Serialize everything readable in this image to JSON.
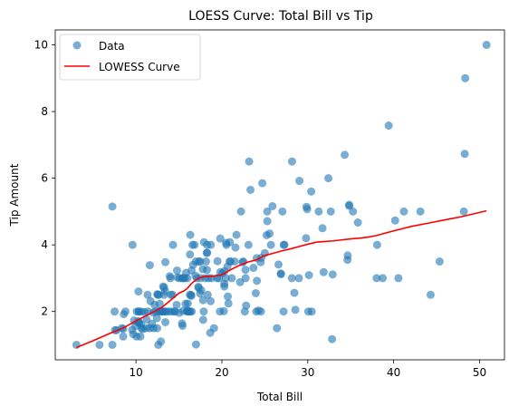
{
  "chart_data": {
    "type": "scatter",
    "title": "LOESS Curve: Total Bill vs Tip",
    "xlabel": "Total Bill",
    "ylabel": "Tip Amount",
    "xlim": [
      0.6,
      52.9
    ],
    "ylim": [
      0.55,
      10.45
    ],
    "xticks": [
      10,
      20,
      30,
      40,
      50
    ],
    "yticks": [
      2,
      4,
      6,
      8,
      10
    ],
    "grid": false,
    "legend_position": "top-left",
    "colors": {
      "scatter": "#1f77b4",
      "curve": "#ff0000"
    },
    "series": [
      {
        "name": "Data",
        "kind": "scatter",
        "points": [
          [
            3.07,
            1.0
          ],
          [
            5.75,
            1.0
          ],
          [
            7.25,
            1.0
          ],
          [
            7.25,
            5.15
          ],
          [
            7.51,
            2.0
          ],
          [
            7.56,
            1.44
          ],
          [
            7.74,
            1.44
          ],
          [
            8.35,
            1.5
          ],
          [
            8.51,
            1.25
          ],
          [
            8.52,
            1.48
          ],
          [
            8.58,
            1.92
          ],
          [
            8.77,
            2.0
          ],
          [
            9.55,
            1.45
          ],
          [
            9.6,
            4.0
          ],
          [
            9.68,
            1.32
          ],
          [
            9.78,
            1.73
          ],
          [
            9.94,
            1.56
          ],
          [
            10.07,
            1.25
          ],
          [
            10.09,
            2.0
          ],
          [
            10.27,
            1.71
          ],
          [
            10.29,
            2.6
          ],
          [
            10.33,
            1.67
          ],
          [
            10.33,
            2.0
          ],
          [
            10.34,
            1.66
          ],
          [
            10.34,
            2.0
          ],
          [
            10.51,
            1.25
          ],
          [
            10.59,
            1.61
          ],
          [
            10.63,
            2.0
          ],
          [
            10.65,
            1.5
          ],
          [
            10.77,
            1.47
          ],
          [
            11.02,
            1.98
          ],
          [
            11.17,
            1.5
          ],
          [
            11.24,
            1.76
          ],
          [
            11.35,
            2.5
          ],
          [
            11.38,
            2.0
          ],
          [
            11.59,
            1.5
          ],
          [
            11.61,
            3.39
          ],
          [
            11.69,
            2.31
          ],
          [
            11.87,
            1.63
          ],
          [
            12.02,
            1.97
          ],
          [
            12.03,
            1.5
          ],
          [
            12.16,
            2.2
          ],
          [
            12.26,
            2.0
          ],
          [
            12.43,
            1.8
          ],
          [
            12.46,
            1.5
          ],
          [
            12.48,
            2.52
          ],
          [
            12.54,
            2.5
          ],
          [
            12.6,
            1.0
          ],
          [
            12.66,
            2.5
          ],
          [
            12.69,
            2.0
          ],
          [
            12.74,
            2.01
          ],
          [
            12.76,
            2.23
          ],
          [
            12.9,
            1.1
          ],
          [
            13.0,
            2.0
          ],
          [
            13.03,
            2.0
          ],
          [
            13.13,
            2.0
          ],
          [
            13.16,
            2.75
          ],
          [
            13.27,
            2.5
          ],
          [
            13.28,
            2.72
          ],
          [
            13.37,
            2.0
          ],
          [
            13.39,
            2.61
          ],
          [
            13.42,
            3.48
          ],
          [
            13.42,
            1.68
          ],
          [
            13.51,
            2.0
          ],
          [
            13.81,
            2.0
          ],
          [
            13.94,
            3.06
          ],
          [
            14.0,
            3.0
          ],
          [
            14.07,
            2.5
          ],
          [
            14.15,
            2.0
          ],
          [
            14.26,
            2.5
          ],
          [
            14.31,
            4.0
          ],
          [
            14.48,
            2.0
          ],
          [
            14.52,
            2.0
          ],
          [
            14.73,
            2.2
          ],
          [
            14.78,
            3.23
          ],
          [
            14.83,
            3.02
          ],
          [
            15.04,
            1.96
          ],
          [
            15.06,
            3.0
          ],
          [
            15.36,
            1.64
          ],
          [
            15.38,
            3.0
          ],
          [
            15.42,
            1.57
          ],
          [
            15.48,
            2.02
          ],
          [
            15.53,
            3.0
          ],
          [
            15.69,
            3.0
          ],
          [
            15.77,
            2.23
          ],
          [
            15.81,
            3.16
          ],
          [
            15.95,
            2.0
          ],
          [
            15.98,
            2.03
          ],
          [
            15.98,
            3.0
          ],
          [
            16.0,
            2.0
          ],
          [
            16.04,
            2.24
          ],
          [
            16.21,
            2.0
          ],
          [
            16.27,
            2.5
          ],
          [
            16.29,
            3.71
          ],
          [
            16.31,
            2.0
          ],
          [
            16.32,
            4.3
          ],
          [
            16.4,
            2.5
          ],
          [
            16.45,
            2.47
          ],
          [
            16.47,
            3.23
          ],
          [
            16.49,
            2.0
          ],
          [
            16.58,
            4.0
          ],
          [
            16.66,
            3.4
          ],
          [
            16.82,
            4.0
          ],
          [
            16.93,
            3.07
          ],
          [
            16.97,
            3.5
          ],
          [
            16.99,
            1.01
          ],
          [
            17.07,
            3.0
          ],
          [
            17.26,
            2.74
          ],
          [
            17.29,
            2.71
          ],
          [
            17.31,
            3.5
          ],
          [
            17.46,
            2.54
          ],
          [
            17.47,
            3.5
          ],
          [
            17.51,
            3.0
          ],
          [
            17.59,
            2.64
          ],
          [
            17.78,
            3.27
          ],
          [
            17.81,
            2.34
          ],
          [
            17.82,
            1.75
          ],
          [
            17.89,
            2.0
          ],
          [
            17.92,
            4.08
          ],
          [
            18.04,
            3.0
          ],
          [
            18.15,
            3.5
          ],
          [
            18.24,
            3.76
          ],
          [
            18.26,
            3.25
          ],
          [
            18.28,
            4.0
          ],
          [
            18.29,
            3.76
          ],
          [
            18.35,
            2.5
          ],
          [
            18.43,
            3.0
          ],
          [
            18.64,
            1.36
          ],
          [
            18.69,
            2.31
          ],
          [
            18.71,
            4.0
          ],
          [
            18.78,
            3.0
          ],
          [
            19.08,
            1.5
          ],
          [
            19.44,
            3.0
          ],
          [
            19.49,
            3.51
          ],
          [
            19.65,
            3.0
          ],
          [
            19.77,
            2.0
          ],
          [
            19.81,
            4.19
          ],
          [
            19.82,
            3.18
          ],
          [
            20.08,
            3.15
          ],
          [
            20.23,
            2.01
          ],
          [
            20.27,
            2.83
          ],
          [
            20.29,
            2.75
          ],
          [
            20.29,
            3.21
          ],
          [
            20.45,
            3.0
          ],
          [
            20.49,
            4.06
          ],
          [
            20.53,
            4.0
          ],
          [
            20.65,
            3.35
          ],
          [
            20.69,
            2.45
          ],
          [
            20.76,
            2.24
          ],
          [
            20.9,
            3.5
          ],
          [
            20.92,
            4.08
          ],
          [
            21.01,
            3.5
          ],
          [
            21.16,
            3.0
          ],
          [
            21.5,
            3.5
          ],
          [
            21.58,
            3.92
          ],
          [
            21.7,
            4.3
          ],
          [
            22.12,
            2.88
          ],
          [
            22.23,
            5.0
          ],
          [
            22.42,
            3.48
          ],
          [
            22.49,
            3.5
          ],
          [
            22.67,
            2.0
          ],
          [
            22.75,
            3.25
          ],
          [
            22.76,
            3.0
          ],
          [
            22.82,
            2.18
          ],
          [
            23.1,
            4.0
          ],
          [
            23.17,
            6.5
          ],
          [
            23.33,
            5.65
          ],
          [
            23.68,
            3.31
          ],
          [
            23.95,
            2.55
          ],
          [
            24.01,
            2.0
          ],
          [
            24.06,
            3.6
          ],
          [
            24.08,
            2.92
          ],
          [
            24.27,
            2.03
          ],
          [
            24.52,
            3.48
          ],
          [
            24.55,
            2.0
          ],
          [
            24.59,
            3.61
          ],
          [
            24.71,
            5.85
          ],
          [
            25.0,
            3.75
          ],
          [
            25.21,
            4.29
          ],
          [
            25.28,
            5.0
          ],
          [
            25.29,
            4.71
          ],
          [
            25.56,
            4.34
          ],
          [
            25.71,
            4.0
          ],
          [
            25.89,
            5.16
          ],
          [
            26.41,
            1.5
          ],
          [
            26.59,
            3.41
          ],
          [
            26.86,
            3.14
          ],
          [
            26.88,
            3.12
          ],
          [
            27.05,
            5.0
          ],
          [
            27.18,
            2.0
          ],
          [
            27.2,
            4.0
          ],
          [
            27.28,
            4.0
          ],
          [
            28.15,
            3.0
          ],
          [
            28.17,
            6.5
          ],
          [
            28.44,
            2.56
          ],
          [
            28.55,
            2.05
          ],
          [
            28.97,
            3.0
          ],
          [
            29.03,
            5.92
          ],
          [
            29.8,
            4.2
          ],
          [
            29.85,
            5.14
          ],
          [
            29.93,
            5.07
          ],
          [
            30.06,
            2.0
          ],
          [
            30.14,
            3.09
          ],
          [
            30.4,
            5.6
          ],
          [
            30.46,
            2.0
          ],
          [
            31.27,
            5.0
          ],
          [
            31.71,
            4.5
          ],
          [
            31.85,
            3.18
          ],
          [
            32.4,
            6.0
          ],
          [
            32.68,
            5.0
          ],
          [
            32.83,
            1.17
          ],
          [
            32.9,
            3.11
          ],
          [
            34.3,
            6.7
          ],
          [
            34.63,
            3.55
          ],
          [
            34.65,
            3.68
          ],
          [
            34.81,
            5.2
          ],
          [
            34.83,
            5.17
          ],
          [
            35.26,
            5.0
          ],
          [
            35.83,
            4.67
          ],
          [
            38.01,
            3.0
          ],
          [
            38.07,
            4.0
          ],
          [
            38.73,
            3.0
          ],
          [
            39.42,
            7.58
          ],
          [
            40.17,
            4.73
          ],
          [
            40.55,
            3.0
          ],
          [
            41.19,
            5.0
          ],
          [
            43.11,
            5.0
          ],
          [
            44.3,
            2.5
          ],
          [
            45.35,
            3.5
          ],
          [
            48.17,
            5.0
          ],
          [
            48.27,
            6.73
          ],
          [
            48.33,
            9.0
          ],
          [
            50.81,
            10.0
          ]
        ]
      },
      {
        "name": "LOWESS Curve",
        "kind": "line",
        "points": [
          [
            3.07,
            0.92
          ],
          [
            5.0,
            1.12
          ],
          [
            7.0,
            1.35
          ],
          [
            8.5,
            1.5
          ],
          [
            10.0,
            1.72
          ],
          [
            11.0,
            1.85
          ],
          [
            12.0,
            1.98
          ],
          [
            13.0,
            2.12
          ],
          [
            14.0,
            2.33
          ],
          [
            15.0,
            2.55
          ],
          [
            15.6,
            2.62
          ],
          [
            16.0,
            2.7
          ],
          [
            16.5,
            2.85
          ],
          [
            17.0,
            2.95
          ],
          [
            17.5,
            3.02
          ],
          [
            18.0,
            3.05
          ],
          [
            18.5,
            3.05
          ],
          [
            19.0,
            3.06
          ],
          [
            20.0,
            3.1
          ],
          [
            21.0,
            3.25
          ],
          [
            22.0,
            3.38
          ],
          [
            23.0,
            3.48
          ],
          [
            24.0,
            3.55
          ],
          [
            25.0,
            3.68
          ],
          [
            26.0,
            3.75
          ],
          [
            27.0,
            3.82
          ],
          [
            28.0,
            3.88
          ],
          [
            29.0,
            3.95
          ],
          [
            30.0,
            4.02
          ],
          [
            30.5,
            4.05
          ],
          [
            31.0,
            4.08
          ],
          [
            32.0,
            4.1
          ],
          [
            33.0,
            4.12
          ],
          [
            34.0,
            4.15
          ],
          [
            35.0,
            4.18
          ],
          [
            36.0,
            4.2
          ],
          [
            37.0,
            4.23
          ],
          [
            38.0,
            4.28
          ],
          [
            39.0,
            4.35
          ],
          [
            40.0,
            4.42
          ],
          [
            42.0,
            4.55
          ],
          [
            44.0,
            4.65
          ],
          [
            46.0,
            4.75
          ],
          [
            48.0,
            4.85
          ],
          [
            50.8,
            5.02
          ]
        ]
      }
    ]
  }
}
